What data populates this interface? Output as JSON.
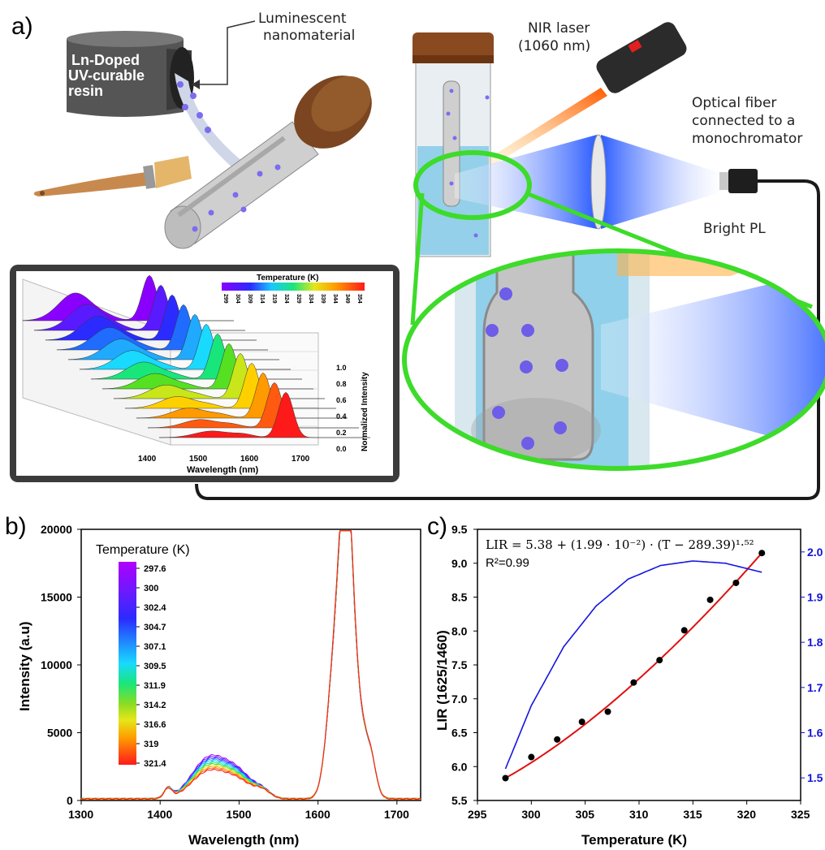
{
  "panel_a": {
    "letter": "a)",
    "labels": {
      "luminescent": [
        "Luminescent",
        "nanomaterial"
      ],
      "resin": [
        "Ln-Doped",
        "UV-curable",
        "resin"
      ],
      "laser": [
        "NIR laser",
        "(1060 nm)"
      ],
      "fiber": [
        "Optical fiber",
        "connected to a",
        "monochromator"
      ],
      "bright_pl": "Bright PL"
    },
    "inset": {
      "legend_title": "Temperature (K)",
      "legend_ticks": [
        "299",
        "304",
        "309",
        "314",
        "319",
        "324",
        "329",
        "334",
        "339",
        "344",
        "349",
        "354"
      ],
      "x_ticks": [
        "1400",
        "1500",
        "1600",
        "1700"
      ],
      "xlabel": "Wavelength (nm)",
      "z_ticks": [
        "0.0",
        "0.2",
        "0.4",
        "0.6",
        "0.8",
        "1.0"
      ],
      "zlabel": "Normalized Intensity"
    }
  },
  "panel_b": {
    "letter": "b)",
    "legend_title": "Temperature (K)",
    "chart_data": {
      "type": "line",
      "xlabel": "Wavelength (nm)",
      "ylabel": "Intensity (a.u)",
      "xlim": [
        1300,
        1730
      ],
      "ylim": [
        0,
        20000
      ],
      "x_ticks": [
        1300,
        1400,
        1500,
        1600,
        1700
      ],
      "y_ticks": [
        0,
        5000,
        10000,
        15000,
        20000
      ],
      "series": [
        {
          "name": "297.6",
          "color": "#a600ff",
          "peak1460": 3000,
          "peak1630": 18000
        },
        {
          "name": "300",
          "color": "#6a1aff",
          "peak1460": 2900,
          "peak1630": 17900
        },
        {
          "name": "302.4",
          "color": "#2b2bff",
          "peak1460": 2800,
          "peak1630": 17800
        },
        {
          "name": "304.7",
          "color": "#1f8cff",
          "peak1460": 2700,
          "peak1630": 17900
        },
        {
          "name": "307.1",
          "color": "#19d9ff",
          "peak1460": 2600,
          "peak1630": 18000
        },
        {
          "name": "309.5",
          "color": "#19e67a",
          "peak1460": 2500,
          "peak1630": 18100
        },
        {
          "name": "311.9",
          "color": "#33dd33",
          "peak1460": 2400,
          "peak1630": 18000
        },
        {
          "name": "314.2",
          "color": "#e6e619",
          "peak1460": 2300,
          "peak1630": 18200
        },
        {
          "name": "316.6",
          "color": "#ff9a00",
          "peak1460": 2200,
          "peak1630": 18400
        },
        {
          "name": "319",
          "color": "#ff5a10",
          "peak1460": 2100,
          "peak1630": 18300
        },
        {
          "name": "321.4",
          "color": "#ff1a1a",
          "peak1460": 2000,
          "peak1630": 18500
        }
      ]
    }
  },
  "panel_c": {
    "letter": "c)",
    "equation": "LIR = 5.38 + (1.99 · 10⁻²) · (T − 289.39)¹·⁵²",
    "r2": "R²=0.99",
    "chart_data": {
      "type": "scatter",
      "xlabel": "Temperature (K)",
      "ylabel": "LIR (1625/1460)",
      "xlim": [
        295,
        325
      ],
      "ylim": [
        5.5,
        9.5
      ],
      "y2lim": [
        1.45,
        2.05
      ],
      "x_ticks": [
        295,
        300,
        305,
        310,
        315,
        320,
        325
      ],
      "y_ticks": [
        5.5,
        6.0,
        6.5,
        7.0,
        7.5,
        8.0,
        8.5,
        9.0,
        9.5
      ],
      "y2_ticks": [
        1.5,
        1.6,
        1.7,
        1.8,
        1.9,
        2.0
      ],
      "points": {
        "x": [
          297.6,
          300,
          302.4,
          304.7,
          307.1,
          309.5,
          311.9,
          314.2,
          316.6,
          319,
          321.4
        ],
        "y": [
          5.83,
          6.14,
          6.4,
          6.66,
          6.81,
          7.24,
          7.57,
          8.01,
          8.46,
          8.71,
          9.15
        ]
      },
      "fit": {
        "a": 5.38,
        "b": 0.0199,
        "t0": 289.39,
        "n": 1.52,
        "color": "#e01010"
      },
      "sensitivity": {
        "color": "#1515e0",
        "x": [
          297.6,
          300,
          303,
          306,
          309,
          312,
          315,
          318,
          321.4
        ],
        "y": [
          1.52,
          1.66,
          1.79,
          1.88,
          1.94,
          1.97,
          1.98,
          1.975,
          1.955
        ]
      }
    }
  }
}
